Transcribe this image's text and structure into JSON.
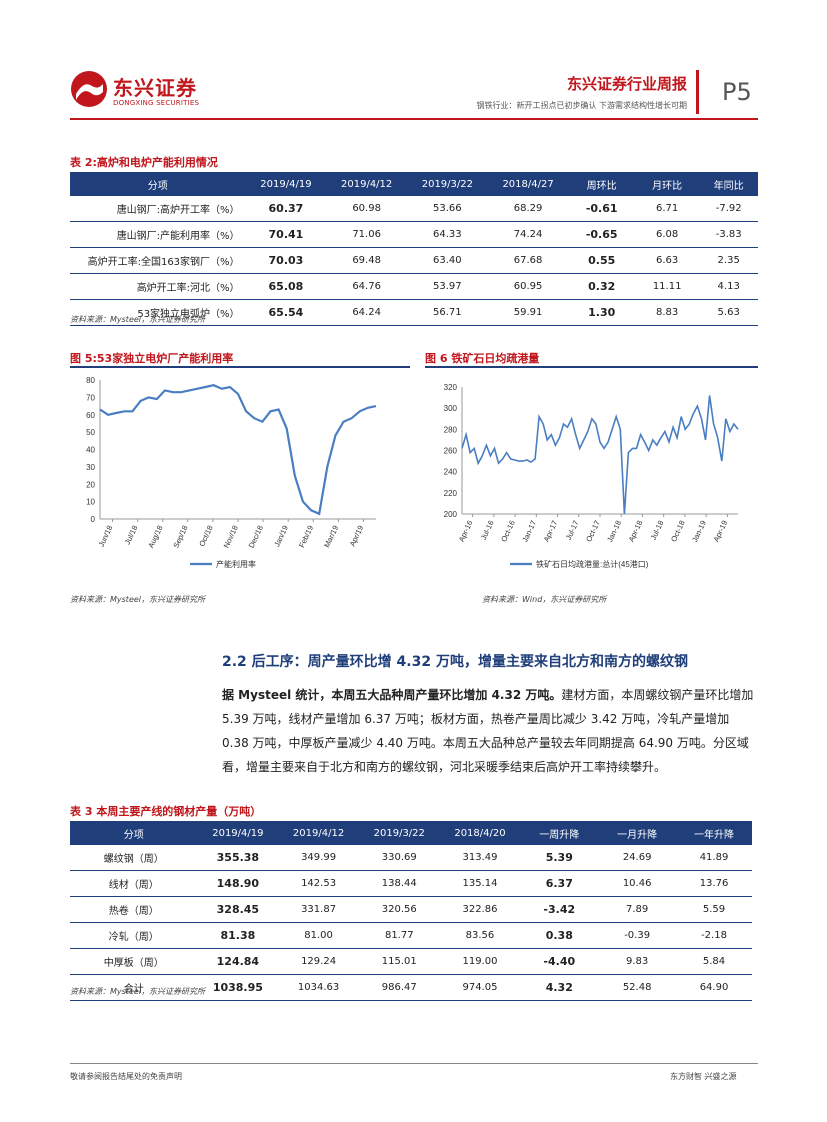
{
  "header": {
    "logo_cn": "东兴证券",
    "logo_en": "DONGXING SECURITIES",
    "title": "东兴证券行业周报",
    "subtitle": "钢铁行业：新开工拐点已初步确认 下游需求结构性增长可期",
    "page": "P5"
  },
  "table2": {
    "caption": "表 2:高炉和电炉产能利用情况",
    "headers": [
      "分项",
      "2019/4/19",
      "2019/4/12",
      "2019/3/22",
      "2018/4/27",
      "周环比",
      "月环比",
      "年同比"
    ],
    "rows": [
      [
        "唐山钢厂:高炉开工率（%）",
        "60.37",
        "60.98",
        "53.66",
        "68.29",
        "-0.61",
        "6.71",
        "-7.92"
      ],
      [
        "唐山钢厂:产能利用率（%）",
        "70.41",
        "71.06",
        "64.33",
        "74.24",
        "-0.65",
        "6.08",
        "-3.83"
      ],
      [
        "高炉开工率:全国163家钢厂（%）",
        "70.03",
        "69.48",
        "63.40",
        "67.68",
        "0.55",
        "6.63",
        "2.35"
      ],
      [
        "高炉开工率:河北（%）",
        "65.08",
        "64.76",
        "53.97",
        "60.95",
        "0.32",
        "11.11",
        "4.13"
      ],
      [
        "53家独立电弧炉（%）",
        "65.54",
        "64.24",
        "56.71",
        "59.91",
        "1.30",
        "8.83",
        "5.63"
      ]
    ],
    "source": "资料来源：Mysteel，东兴证券研究所"
  },
  "chart_data": [
    {
      "type": "line",
      "title": "图 5:53家独立电炉厂产能利用率",
      "x_ticks": [
        "Jun/18",
        "Jul/18",
        "Aug/18",
        "Sep/18",
        "Oct/18",
        "Nov/18",
        "Dec/18",
        "Jan/19",
        "Feb/19",
        "Mar/19",
        "Apr/19"
      ],
      "ylim": [
        0,
        80
      ],
      "y_ticks": [
        "0",
        "10",
        "20",
        "30",
        "40",
        "50",
        "60",
        "70",
        "80"
      ],
      "series": [
        {
          "name": "产能利用率",
          "color": "#4a7ec2",
          "values": [
            63,
            60,
            61,
            62,
            62,
            68,
            70,
            69,
            74,
            73,
            73,
            74,
            75,
            76,
            77,
            75,
            76,
            72,
            62,
            58,
            56,
            62,
            63,
            52,
            25,
            10,
            5,
            3,
            30,
            48,
            56,
            58,
            62,
            64,
            65
          ]
        }
      ],
      "source": "资料来源：Mysteel，东兴证券研究所"
    },
    {
      "type": "line",
      "title": "图 6 铁矿石日均疏港量",
      "x_ticks": [
        "Apr-16",
        "Jul-16",
        "Oct-16",
        "Jan-17",
        "Apr-17",
        "Jul-17",
        "Oct-17",
        "Jan-18",
        "Apr-18",
        "Jul-18",
        "Oct-18",
        "Jan-19",
        "Apr-19"
      ],
      "ylim": [
        200,
        320
      ],
      "y_ticks": [
        "200",
        "220",
        "240",
        "260",
        "280",
        "300",
        "320"
      ],
      "series": [
        {
          "name": "铁矿石日均疏港量:总计(45港口)",
          "color": "#4a7ec2",
          "values": [
            262,
            275,
            258,
            262,
            248,
            255,
            265,
            255,
            262,
            248,
            252,
            258,
            252,
            251,
            250,
            250,
            251,
            249,
            252,
            292,
            285,
            270,
            275,
            265,
            272,
            285,
            282,
            290,
            275,
            262,
            270,
            278,
            290,
            285,
            268,
            262,
            268,
            280,
            292,
            280,
            200,
            258,
            262,
            262,
            275,
            268,
            260,
            270,
            265,
            272,
            278,
            268,
            282,
            272,
            292,
            280,
            285,
            295,
            302,
            290,
            270,
            312,
            285,
            272,
            250,
            290,
            278,
            285,
            280
          ]
        }
      ],
      "source": "资料来源：Wind，东兴证券研究所"
    }
  ],
  "section": {
    "heading": "2.2 后工序：周产量环比增 4.32 万吨，增量主要来自北方和南方的螺纹钢",
    "lead": "据 Mysteel 统计，本周五大品种周产量环比增加 4.32 万吨。",
    "body": "建材方面，本周螺纹钢产量环比增加 5.39 万吨，线材产量增加 6.37 万吨；板材方面，热卷产量周比减少 3.42 万吨，冷轧产量增加 0.38 万吨，中厚板产量减少 4.40 万吨。本周五大品种总产量较去年同期提高 64.90 万吨。分区域看，增量主要来自于北方和南方的螺纹钢，河北采暖季结束后高炉开工率持续攀升。"
  },
  "table3": {
    "caption": "表 3 本周主要产线的钢材产量（万吨）",
    "headers": [
      "分项",
      "2019/4/19",
      "2019/4/12",
      "2019/3/22",
      "2018/4/20",
      "一周升降",
      "一月升降",
      "一年升降"
    ],
    "rows": [
      [
        "螺纹钢（周）",
        "355.38",
        "349.99",
        "330.69",
        "313.49",
        "5.39",
        "24.69",
        "41.89"
      ],
      [
        "线材（周）",
        "148.90",
        "142.53",
        "138.44",
        "135.14",
        "6.37",
        "10.46",
        "13.76"
      ],
      [
        "热卷（周）",
        "328.45",
        "331.87",
        "320.56",
        "322.86",
        "-3.42",
        "7.89",
        "5.59"
      ],
      [
        "冷轧（周）",
        "81.38",
        "81.00",
        "81.77",
        "83.56",
        "0.38",
        "-0.39",
        "-2.18"
      ],
      [
        "中厚板（周）",
        "124.84",
        "129.24",
        "115.01",
        "119.00",
        "-4.40",
        "9.83",
        "5.84"
      ],
      [
        "合计",
        "1038.95",
        "1034.63",
        "986.47",
        "974.05",
        "4.32",
        "52.48",
        "64.90"
      ]
    ],
    "source": "资料来源：Mysteel，东兴证券研究所"
  },
  "footer": {
    "left": "敬请参阅报告结尾处的免责声明",
    "right": "东方财智 兴盛之源"
  }
}
